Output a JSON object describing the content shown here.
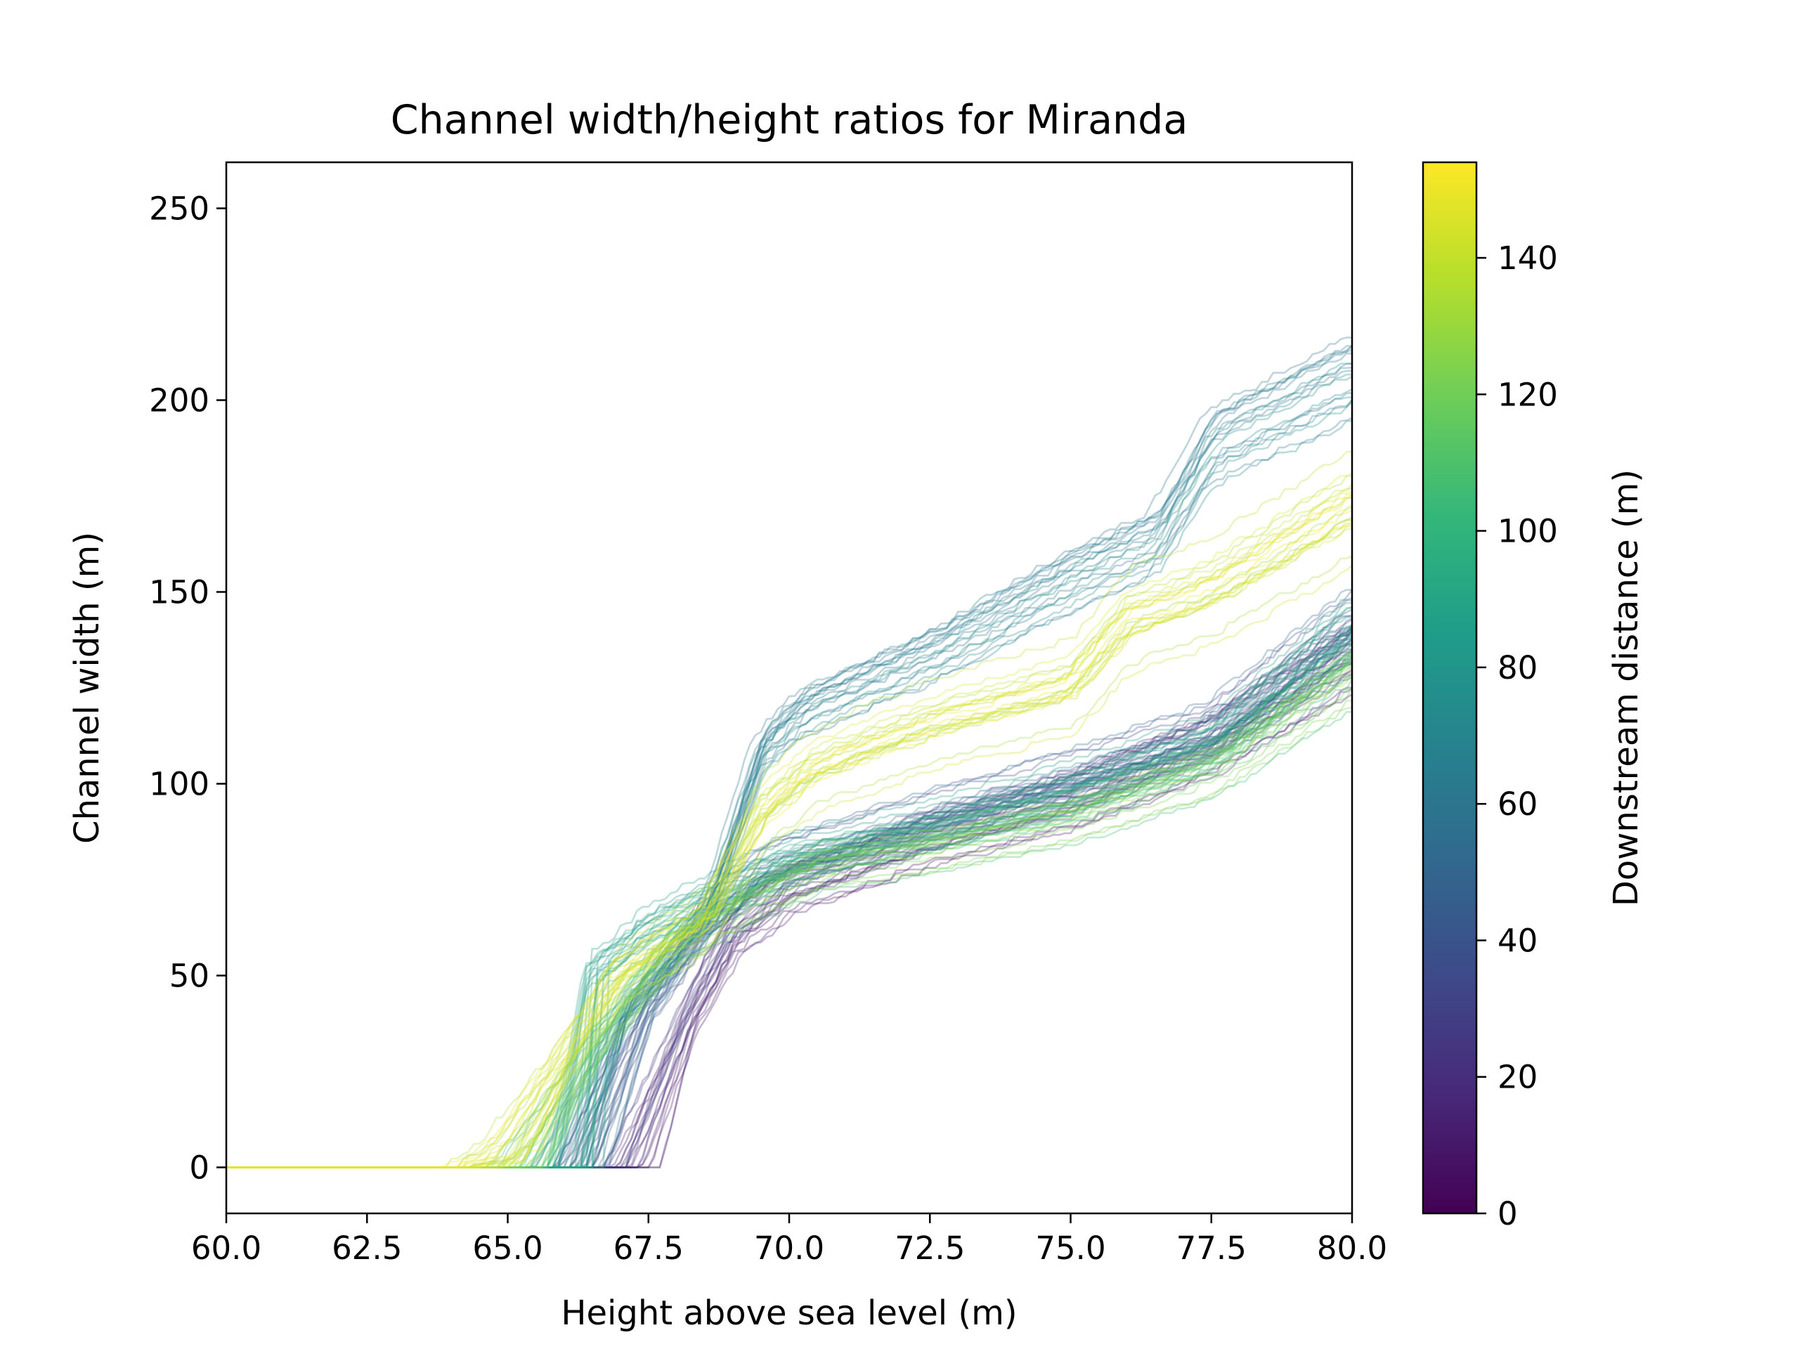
{
  "chart_data": {
    "type": "line",
    "title": "Channel width/height ratios for Miranda",
    "xlabel": "Height above sea level (m)",
    "ylabel": "Channel width (m)",
    "xlim": [
      60.0,
      80.0
    ],
    "ylim": [
      -12,
      262
    ],
    "xticks": [
      60.0,
      62.5,
      65.0,
      67.5,
      70.0,
      72.5,
      75.0,
      77.5,
      80.0
    ],
    "xtick_labels": [
      "60.0",
      "62.5",
      "65.0",
      "67.5",
      "70.0",
      "72.5",
      "75.0",
      "77.5",
      "80.0"
    ],
    "yticks": [
      0,
      50,
      100,
      150,
      200,
      250
    ],
    "ytick_labels": [
      "0",
      "50",
      "100",
      "150",
      "200",
      "250"
    ],
    "grid": false,
    "legend": "none",
    "line_alpha": 0.3,
    "colormap": "viridis",
    "colormap_stops": [
      "#440154",
      "#482878",
      "#3e4989",
      "#31688e",
      "#26828e",
      "#1f9e89",
      "#35b779",
      "#6ece58",
      "#b5de2b",
      "#fde725"
    ],
    "colorbar": {
      "label": "Downstream distance (m)",
      "range": [
        0,
        154
      ],
      "ticks": [
        0,
        20,
        40,
        60,
        80,
        100,
        120,
        140
      ],
      "tick_labels": [
        "0",
        "20",
        "40",
        "60",
        "80",
        "100",
        "120",
        "140"
      ]
    },
    "series_groups": [
      {
        "distance_range": [
          2,
          30
        ],
        "count": 22,
        "profile": [
          [
            60,
            0
          ],
          [
            66.6,
            0
          ],
          [
            67.2,
            0
          ],
          [
            68.2,
            38
          ],
          [
            69,
            60
          ],
          [
            70,
            72
          ],
          [
            72.5,
            85
          ],
          [
            75,
            95
          ],
          [
            77.5,
            110
          ],
          [
            80,
            133
          ]
        ],
        "spread": 6
      },
      {
        "distance_range": [
          30,
          55
        ],
        "count": 22,
        "profile": [
          [
            60,
            0
          ],
          [
            65.8,
            0
          ],
          [
            66.4,
            0
          ],
          [
            67.5,
            42
          ],
          [
            68.5,
            62
          ],
          [
            69.5,
            76
          ],
          [
            72.5,
            90
          ],
          [
            75,
            100
          ],
          [
            77.5,
            112
          ],
          [
            80,
            140
          ]
        ],
        "spread": 6
      },
      {
        "distance_range": [
          55,
          75
        ],
        "count": 20,
        "profile": [
          [
            60,
            0
          ],
          [
            65.3,
            0
          ],
          [
            66,
            0
          ],
          [
            67,
            40
          ],
          [
            68.5,
            66
          ],
          [
            69.5,
            110
          ],
          [
            70.2,
            120
          ],
          [
            72.5,
            135
          ],
          [
            75,
            155
          ],
          [
            76.5,
            165
          ],
          [
            77.5,
            190
          ],
          [
            80,
            208
          ]
        ],
        "spread": 7
      },
      {
        "distance_range": [
          75,
          100
        ],
        "count": 18,
        "profile": [
          [
            60,
            0
          ],
          [
            65.5,
            0
          ],
          [
            66.2,
            0
          ],
          [
            66.5,
            50
          ],
          [
            67.5,
            62
          ],
          [
            69,
            73
          ],
          [
            70,
            80
          ],
          [
            72.5,
            88
          ],
          [
            75,
            98
          ],
          [
            77.5,
            110
          ],
          [
            80,
            140
          ]
        ],
        "spread": 6
      },
      {
        "distance_range": [
          100,
          130
        ],
        "count": 24,
        "profile": [
          [
            60,
            0
          ],
          [
            64.6,
            0
          ],
          [
            65.2,
            0
          ],
          [
            66.5,
            30
          ],
          [
            68,
            58
          ],
          [
            69.5,
            70
          ],
          [
            70.5,
            77
          ],
          [
            72.5,
            82
          ],
          [
            75,
            90
          ],
          [
            77.5,
            103
          ],
          [
            80,
            128
          ]
        ],
        "spread": 6
      },
      {
        "distance_range": [
          130,
          154
        ],
        "count": 22,
        "profile": [
          [
            60,
            0
          ],
          [
            64.4,
            0
          ],
          [
            65.1,
            5
          ],
          [
            66,
            28
          ],
          [
            67,
            50
          ],
          [
            68.5,
            64
          ],
          [
            69.5,
            92
          ],
          [
            70.5,
            104
          ],
          [
            72.5,
            115
          ],
          [
            75,
            125
          ],
          [
            76,
            142
          ],
          [
            77.5,
            150
          ],
          [
            80,
            172
          ]
        ],
        "spread": 7
      }
    ]
  }
}
